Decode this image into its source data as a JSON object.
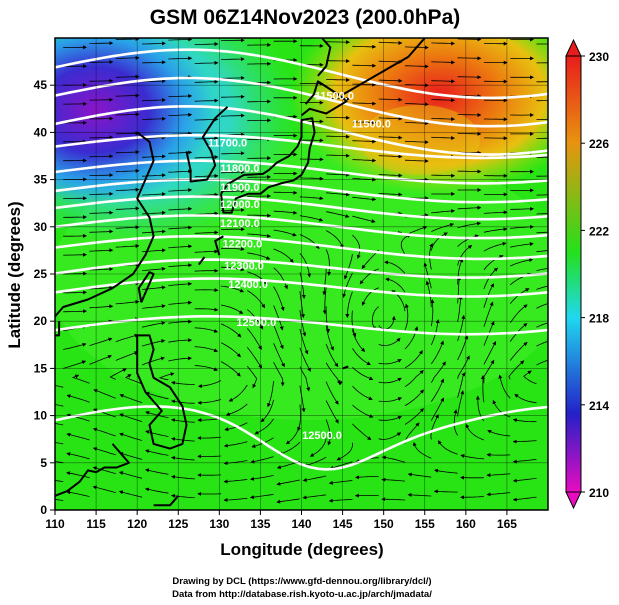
{
  "title": "GSM 06Z14Nov2023 (200.0hPa)",
  "xlabel": "Longitude (degrees)",
  "ylabel": "Latitude  (degrees)",
  "credits": [
    "Drawing by DCL (https://www.gfd-dennou.org/library/dcl/)",
    "Data from http://database.rish.kyoto-u.ac.jp/arch/jmadata/"
  ],
  "map": {
    "lon_range": [
      110,
      170
    ],
    "lat_range": [
      0,
      50
    ],
    "lon_ticks": [
      "110",
      "115",
      "120",
      "125",
      "130",
      "135",
      "140",
      "145",
      "150",
      "155",
      "160",
      "165"
    ],
    "lat_ticks": [
      "0",
      "5",
      "10",
      "15",
      "20",
      "25",
      "30",
      "35",
      "40",
      "45"
    ],
    "grid": true
  },
  "colorbar": {
    "range": [
      210,
      230
    ],
    "tick_labels": [
      "230",
      "226",
      "222",
      "218",
      "214",
      "210"
    ],
    "colors": [
      "#e80cc0",
      "#2420c8",
      "#20d8f0",
      "#24e01c",
      "#e89410",
      "#e81c1c"
    ]
  },
  "contour_labels": [
    {
      "text": "11500.0",
      "lon": 144,
      "lat": 43.5
    },
    {
      "text": "11500.0",
      "lon": 148.5,
      "lat": 40.5
    },
    {
      "text": "11700.0",
      "lon": 131,
      "lat": 38.5
    },
    {
      "text": "11800.0",
      "lon": 132.5,
      "lat": 35.8
    },
    {
      "text": "11900.0",
      "lon": 132.5,
      "lat": 33.8
    },
    {
      "text": "12000.0",
      "lon": 132.5,
      "lat": 32.0
    },
    {
      "text": "12100.0",
      "lon": 132.5,
      "lat": 30.0
    },
    {
      "text": "12200.0",
      "lon": 132.8,
      "lat": 27.8
    },
    {
      "text": "12300.0",
      "lon": 133.0,
      "lat": 25.5
    },
    {
      "text": "12400.0",
      "lon": 133.5,
      "lat": 23.5
    },
    {
      "text": "12500.0",
      "lon": 134.5,
      "lat": 19.5
    },
    {
      "text": "12500.0",
      "lon": 142.5,
      "lat": 7.5
    }
  ]
}
